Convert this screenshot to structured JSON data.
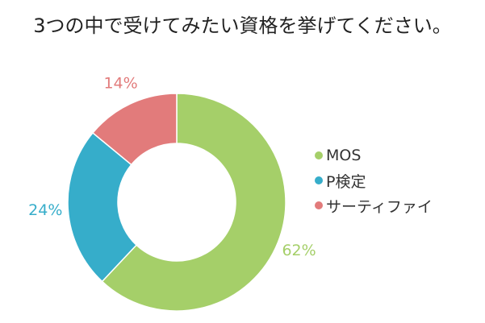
{
  "chart_data": {
    "type": "pie",
    "variant": "donut",
    "title": "3つの中で受けてみたい資格を挙げてください。",
    "categories": [
      "MOS",
      "P検定",
      "サーティファイ"
    ],
    "values": [
      62,
      24,
      14
    ],
    "unit": "%",
    "data_labels": [
      "62%",
      "24%",
      "14%"
    ],
    "colors": [
      "#a5cf69",
      "#36adca",
      "#e27b7b"
    ],
    "legend": {
      "position": "right",
      "items": [
        {
          "label": "MOS",
          "color": "#a5cf69"
        },
        {
          "label": "P検定",
          "color": "#36adca"
        },
        {
          "label": "サーティファイ",
          "color": "#e27b7b"
        }
      ]
    },
    "start_angle": "12 o'clock",
    "direction": "clockwise"
  }
}
